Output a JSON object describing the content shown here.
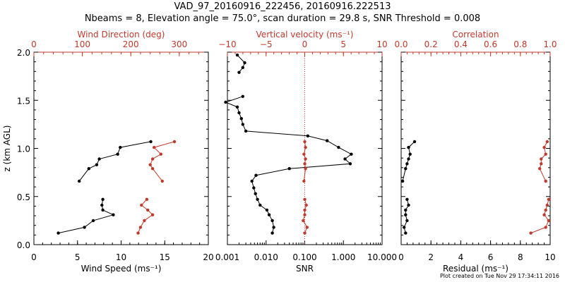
{
  "title_line1": "VAD_97_20160916_222456, 20160916.222513",
  "title_line2": "Nbeams = 8, Elevation angle = 75.0°, scan duration = 29.8 s, SNR Threshold = 0.008",
  "footer": "Plot created on Tue Nov 29 17:34:11 2016",
  "colors": {
    "primary": "#000000",
    "secondary": "#c0392b"
  },
  "chart_data": [
    {
      "type": "line",
      "ylabel": "z (km AGL)",
      "ylim": [
        0.0,
        2.0
      ],
      "yticks": [
        "0.0",
        "0.5",
        "1.0",
        "1.5",
        "2.0"
      ],
      "bottom_axis": {
        "label": "Wind Speed (ms⁻¹)",
        "lim": [
          0,
          20
        ],
        "ticks": [
          "0",
          "5",
          "10",
          "15",
          "20"
        ]
      },
      "top_axis": {
        "label": "Wind Direction (deg)",
        "lim": [
          0,
          360
        ],
        "ticks": [
          "0",
          "100",
          "200",
          "300"
        ]
      },
      "series": [
        {
          "axis": "bottom",
          "color": "black",
          "points": [
            [
              2.8,
              0.12
            ],
            [
              5.8,
              0.18
            ],
            [
              6.8,
              0.25
            ],
            [
              9.1,
              0.31
            ],
            [
              7.9,
              0.36
            ],
            [
              7.8,
              0.41
            ],
            [
              7.9,
              0.47
            ],
            [
              5.2,
              0.66
            ],
            [
              6.3,
              0.79
            ],
            [
              7.2,
              0.83
            ],
            [
              7.5,
              0.89
            ],
            [
              9.6,
              0.94
            ],
            [
              9.9,
              1.01
            ],
            [
              13.4,
              1.07
            ]
          ]
        },
        {
          "axis": "top",
          "color": "red",
          "points": [
            [
              215,
              0.12
            ],
            [
              220,
              0.18
            ],
            [
              228,
              0.25
            ],
            [
              245,
              0.31
            ],
            [
              235,
              0.36
            ],
            [
              222,
              0.41
            ],
            [
              233,
              0.47
            ],
            [
              265,
              0.66
            ],
            [
              245,
              0.79
            ],
            [
              240,
              0.83
            ],
            [
              245,
              0.89
            ],
            [
              262,
              0.94
            ],
            [
              248,
              1.01
            ],
            [
              290,
              1.07
            ]
          ]
        }
      ]
    },
    {
      "type": "line",
      "ylim": [
        0.0,
        2.0
      ],
      "bottom_axis": {
        "label": "SNR",
        "scale": "log",
        "lim": [
          0.001,
          10.0
        ],
        "ticks": [
          "0.001",
          "0.010",
          "0.100",
          "1.000",
          "10.000"
        ]
      },
      "top_axis": {
        "label": "Vertical velocity (ms⁻¹)",
        "lim": [
          -10,
          10
        ],
        "ticks": [
          "−10",
          "−5",
          "0",
          "5",
          "10"
        ]
      },
      "reference_line": {
        "axis": "top",
        "value": 0,
        "style": "dotted",
        "color": "red"
      },
      "series": [
        {
          "axis": "bottom",
          "color": "black",
          "points": [
            [
              0.0145,
              0.12
            ],
            [
              0.0158,
              0.18
            ],
            [
              0.0145,
              0.25
            ],
            [
              0.012,
              0.31
            ],
            [
              0.0105,
              0.36
            ],
            [
              0.007,
              0.41
            ],
            [
              0.006,
              0.47
            ],
            [
              0.0053,
              0.53
            ],
            [
              0.0048,
              0.59
            ],
            [
              0.0043,
              0.66
            ],
            [
              0.0055,
              0.72
            ],
            [
              0.04,
              0.79
            ],
            [
              1.5,
              0.84
            ],
            [
              1.1,
              0.89
            ],
            [
              1.6,
              0.94
            ],
            [
              0.75,
              1.01
            ],
            [
              0.38,
              1.08
            ],
            [
              0.12,
              1.13
            ],
            [
              0.003,
              1.18
            ],
            [
              0.0025,
              1.25
            ],
            [
              0.0023,
              1.31
            ],
            [
              0.002,
              1.37
            ],
            [
              0.0018,
              1.43
            ],
            [
              0.0009,
              1.48
            ],
            [
              0.0025,
              1.54
            ],
            [
              0.002,
              1.79
            ],
            [
              0.0025,
              1.84
            ],
            [
              0.0028,
              1.89
            ],
            [
              0.0018,
              1.97
            ]
          ]
        },
        {
          "axis": "top",
          "color": "red",
          "points": [
            [
              0,
              0.12
            ],
            [
              0.3,
              0.18
            ],
            [
              -0.2,
              0.25
            ],
            [
              0,
              0.31
            ],
            [
              0,
              0.36
            ],
            [
              0.2,
              0.41
            ],
            [
              0,
              0.47
            ],
            [
              -0.1,
              0.66
            ],
            [
              0.1,
              0.79
            ],
            [
              0,
              0.84
            ],
            [
              0.1,
              0.89
            ],
            [
              -0.1,
              0.94
            ],
            [
              0.1,
              1.01
            ],
            [
              0,
              1.07
            ]
          ]
        }
      ]
    },
    {
      "type": "line",
      "ylim": [
        0.0,
        2.0
      ],
      "bottom_axis": {
        "label": "Residual  (ms⁻¹)",
        "lim": [
          0,
          10
        ],
        "ticks": [
          "0",
          "2",
          "4",
          "6",
          "8",
          "10"
        ]
      },
      "top_axis": {
        "label": "Correlation",
        "lim": [
          0.0,
          1.0
        ],
        "ticks": [
          "0.0",
          "0.2",
          "0.4",
          "0.6",
          "0.8",
          "1.0"
        ]
      },
      "series": [
        {
          "axis": "bottom",
          "color": "black",
          "points": [
            [
              0.3,
              0.12
            ],
            [
              0.2,
              0.18
            ],
            [
              0.4,
              0.25
            ],
            [
              0.3,
              0.31
            ],
            [
              0.3,
              0.36
            ],
            [
              0.5,
              0.41
            ],
            [
              0.4,
              0.47
            ],
            [
              0.1,
              0.66
            ],
            [
              0.3,
              0.79
            ],
            [
              0.4,
              0.84
            ],
            [
              0.5,
              0.89
            ],
            [
              0.6,
              0.94
            ],
            [
              0.5,
              1.01
            ],
            [
              0.9,
              1.07
            ]
          ]
        },
        {
          "axis": "top",
          "color": "red",
          "points": [
            [
              0.87,
              0.12
            ],
            [
              0.97,
              0.18
            ],
            [
              0.99,
              0.25
            ],
            [
              0.96,
              0.31
            ],
            [
              0.97,
              0.36
            ],
            [
              0.98,
              0.41
            ],
            [
              0.99,
              0.47
            ],
            [
              0.97,
              0.66
            ],
            [
              0.93,
              0.79
            ],
            [
              0.94,
              0.84
            ],
            [
              0.94,
              0.89
            ],
            [
              0.97,
              0.94
            ],
            [
              0.96,
              1.01
            ],
            [
              0.98,
              1.07
            ]
          ]
        }
      ]
    }
  ]
}
